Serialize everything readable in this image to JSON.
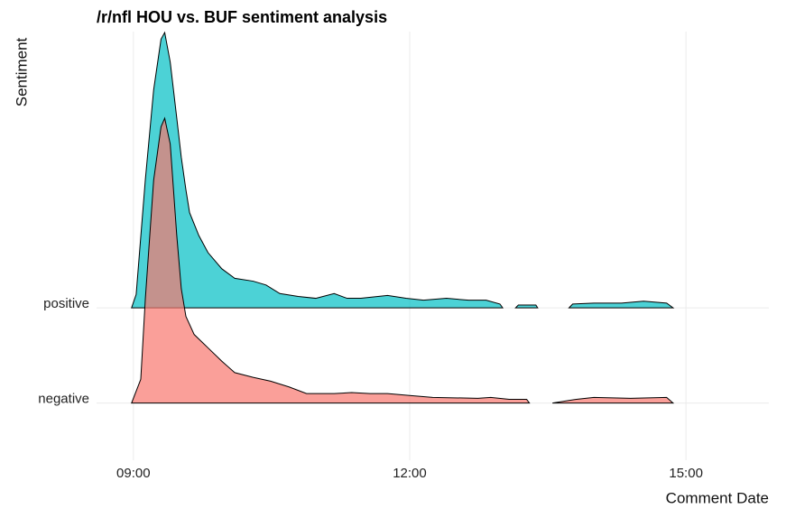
{
  "chart_data": {
    "type": "ridgeline",
    "title": "/r/nfl HOU vs. BUF sentiment analysis",
    "x_label": "Comment Date",
    "y_label": "Sentiment",
    "categories": [
      "negative",
      "positive"
    ],
    "xlim": [
      8.6,
      15.9
    ],
    "xticks": [
      {
        "value": 9,
        "label": "09:00"
      },
      {
        "value": 12,
        "label": "12:00"
      },
      {
        "value": 15,
        "label": "15:00"
      }
    ],
    "ylim": [
      -0.6,
      3.9
    ],
    "grid": true,
    "alpha": 0.7,
    "series": [
      {
        "name": "positive",
        "color": "#00BFC4",
        "x": [
          8.98,
          9.03,
          9.13,
          9.22,
          9.3,
          9.34,
          9.4,
          9.47,
          9.52,
          9.57,
          9.61,
          9.71,
          9.81,
          9.96,
          10.1,
          10.3,
          10.44,
          10.59,
          10.79,
          10.98,
          11.18,
          11.32,
          11.47,
          11.76,
          11.96,
          12.15,
          12.4,
          12.64,
          12.83,
          12.98,
          13.01,
          13.08,
          13.15,
          13.18,
          13.37,
          13.39,
          13.55,
          13.73,
          13.77,
          14.0,
          14.3,
          14.54,
          14.79,
          14.86
        ],
        "values": [
          0,
          0.14,
          1.35,
          2.29,
          2.82,
          2.89,
          2.58,
          2.0,
          1.58,
          1.24,
          1.0,
          0.76,
          0.58,
          0.41,
          0.31,
          0.28,
          0.24,
          0.15,
          0.12,
          0.1,
          0.15,
          0.1,
          0.1,
          0.13,
          0.1,
          0.08,
          0.1,
          0.08,
          0.08,
          0.04,
          0,
          null,
          0,
          0.03,
          0.03,
          0,
          null,
          0,
          0.04,
          0.05,
          0.05,
          0.07,
          0.05,
          0
        ]
      },
      {
        "name": "negative",
        "color": "#F8766D",
        "x": [
          8.98,
          9.08,
          9.13,
          9.22,
          9.3,
          9.34,
          9.4,
          9.47,
          9.52,
          9.57,
          9.66,
          9.81,
          9.96,
          10.1,
          10.3,
          10.49,
          10.69,
          10.88,
          11.18,
          11.37,
          11.57,
          11.76,
          12.0,
          12.25,
          12.74,
          12.88,
          13.08,
          13.27,
          13.3,
          13.42,
          13.55,
          13.81,
          14.0,
          14.4,
          14.79,
          14.86
        ],
        "values": [
          0,
          0.25,
          1.1,
          2.34,
          2.9,
          2.99,
          2.72,
          1.77,
          1.2,
          0.91,
          0.72,
          0.58,
          0.44,
          0.32,
          0.27,
          0.23,
          0.17,
          0.1,
          0.1,
          0.11,
          0.1,
          0.1,
          0.08,
          0.06,
          0.05,
          0.06,
          0.04,
          0.04,
          0,
          null,
          0,
          0.04,
          0.06,
          0.05,
          0.06,
          0
        ]
      }
    ]
  }
}
